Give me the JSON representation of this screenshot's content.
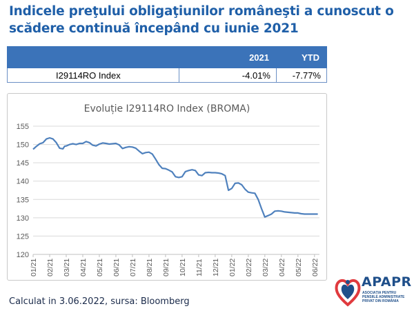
{
  "title": "Indicele preţului obligaţiunilor româneşti a cunoscut o scădere continuă începând cu iunie 2021",
  "table": {
    "headers": [
      "",
      "2021",
      "YTD"
    ],
    "row": {
      "name": "I29114RO Index",
      "v2021": "-4.01%",
      "ytd": "-7.77%"
    }
  },
  "chart_data": {
    "type": "line",
    "title": "Evoluție I29114RO Index (BROMA)",
    "xlabel": "",
    "ylabel": "",
    "ylim": [
      120,
      155
    ],
    "yticks": [
      "120",
      "125",
      "130",
      "135",
      "140",
      "145",
      "150",
      "155"
    ],
    "xticks": [
      "01/21",
      "02/21",
      "03/21",
      "04/21",
      "05/21",
      "06/21",
      "07/21",
      "08/21",
      "09/21",
      "10/21",
      "11/21",
      "12/21",
      "01/22",
      "02/22",
      "03/22",
      "04/22",
      "05/22",
      "06/22"
    ],
    "grid": true,
    "color": "#4f81bd",
    "series": [
      {
        "name": "I29114RO Index",
        "x": [
          0,
          0.2,
          0.4,
          0.6,
          0.8,
          1.0,
          1.2,
          1.4,
          1.6,
          1.8,
          1.9,
          2.0,
          2.2,
          2.4,
          2.6,
          2.8,
          3.0,
          3.2,
          3.4,
          3.6,
          3.8,
          4.0,
          4.2,
          4.4,
          4.6,
          4.8,
          5.0,
          5.2,
          5.4,
          5.6,
          5.8,
          6.0,
          6.2,
          6.4,
          6.6,
          6.8,
          7.0,
          7.2,
          7.4,
          7.6,
          7.8,
          8.0,
          8.2,
          8.4,
          8.6,
          8.8,
          9.0,
          9.2,
          9.4,
          9.6,
          9.8,
          10.0,
          10.2,
          10.4,
          10.6,
          10.8,
          11.0,
          11.2,
          11.4,
          11.6,
          11.8,
          12.0,
          12.2,
          12.4,
          12.6,
          12.8,
          13.0,
          13.2,
          13.4,
          13.6,
          13.8,
          14.0,
          14.1,
          14.2,
          14.4,
          14.6,
          14.8,
          15.0,
          15.2,
          15.4,
          15.6,
          15.8,
          16.0,
          16.1,
          16.2,
          16.4,
          16.6,
          16.8,
          17.0,
          17.2
        ],
        "values": [
          148.7,
          149.5,
          150.2,
          150.5,
          151.5,
          151.8,
          151.5,
          150.5,
          149.0,
          148.8,
          149.5,
          149.6,
          150.0,
          150.2,
          150.0,
          150.3,
          150.3,
          150.8,
          150.5,
          149.8,
          149.6,
          150.1,
          150.4,
          150.3,
          150.1,
          150.2,
          150.3,
          149.9,
          148.9,
          149.2,
          149.4,
          149.3,
          149.0,
          148.2,
          147.5,
          147.8,
          147.9,
          147.4,
          146.0,
          144.5,
          143.5,
          143.4,
          143.0,
          142.5,
          141.2,
          141.0,
          141.2,
          142.6,
          142.9,
          143.1,
          142.9,
          141.7,
          141.5,
          142.3,
          142.4,
          142.3,
          142.3,
          142.2,
          142.0,
          141.5,
          137.5,
          138.0,
          139.4,
          139.5,
          139.0,
          137.8,
          137.0,
          136.8,
          136.7,
          135.0,
          132.5,
          130.2,
          130.4,
          130.6,
          131.0,
          131.8,
          131.9,
          131.8,
          131.6,
          131.5,
          131.4,
          131.3,
          131.3,
          131.2,
          131.1,
          131.0,
          131.0,
          131.0,
          131.0,
          131.0
        ]
      }
    ]
  },
  "footer": "Calculat in 3.06.2022, sursa: Bloomberg",
  "logo": {
    "word": "APAPR",
    "subtitle": "ASOCIAȚIA PENTRU PENSIILE ADMINISTRATE PRIVAT DIN ROMÂNIA",
    "color": "#1f4f8a",
    "accent": "#e03a3e"
  }
}
